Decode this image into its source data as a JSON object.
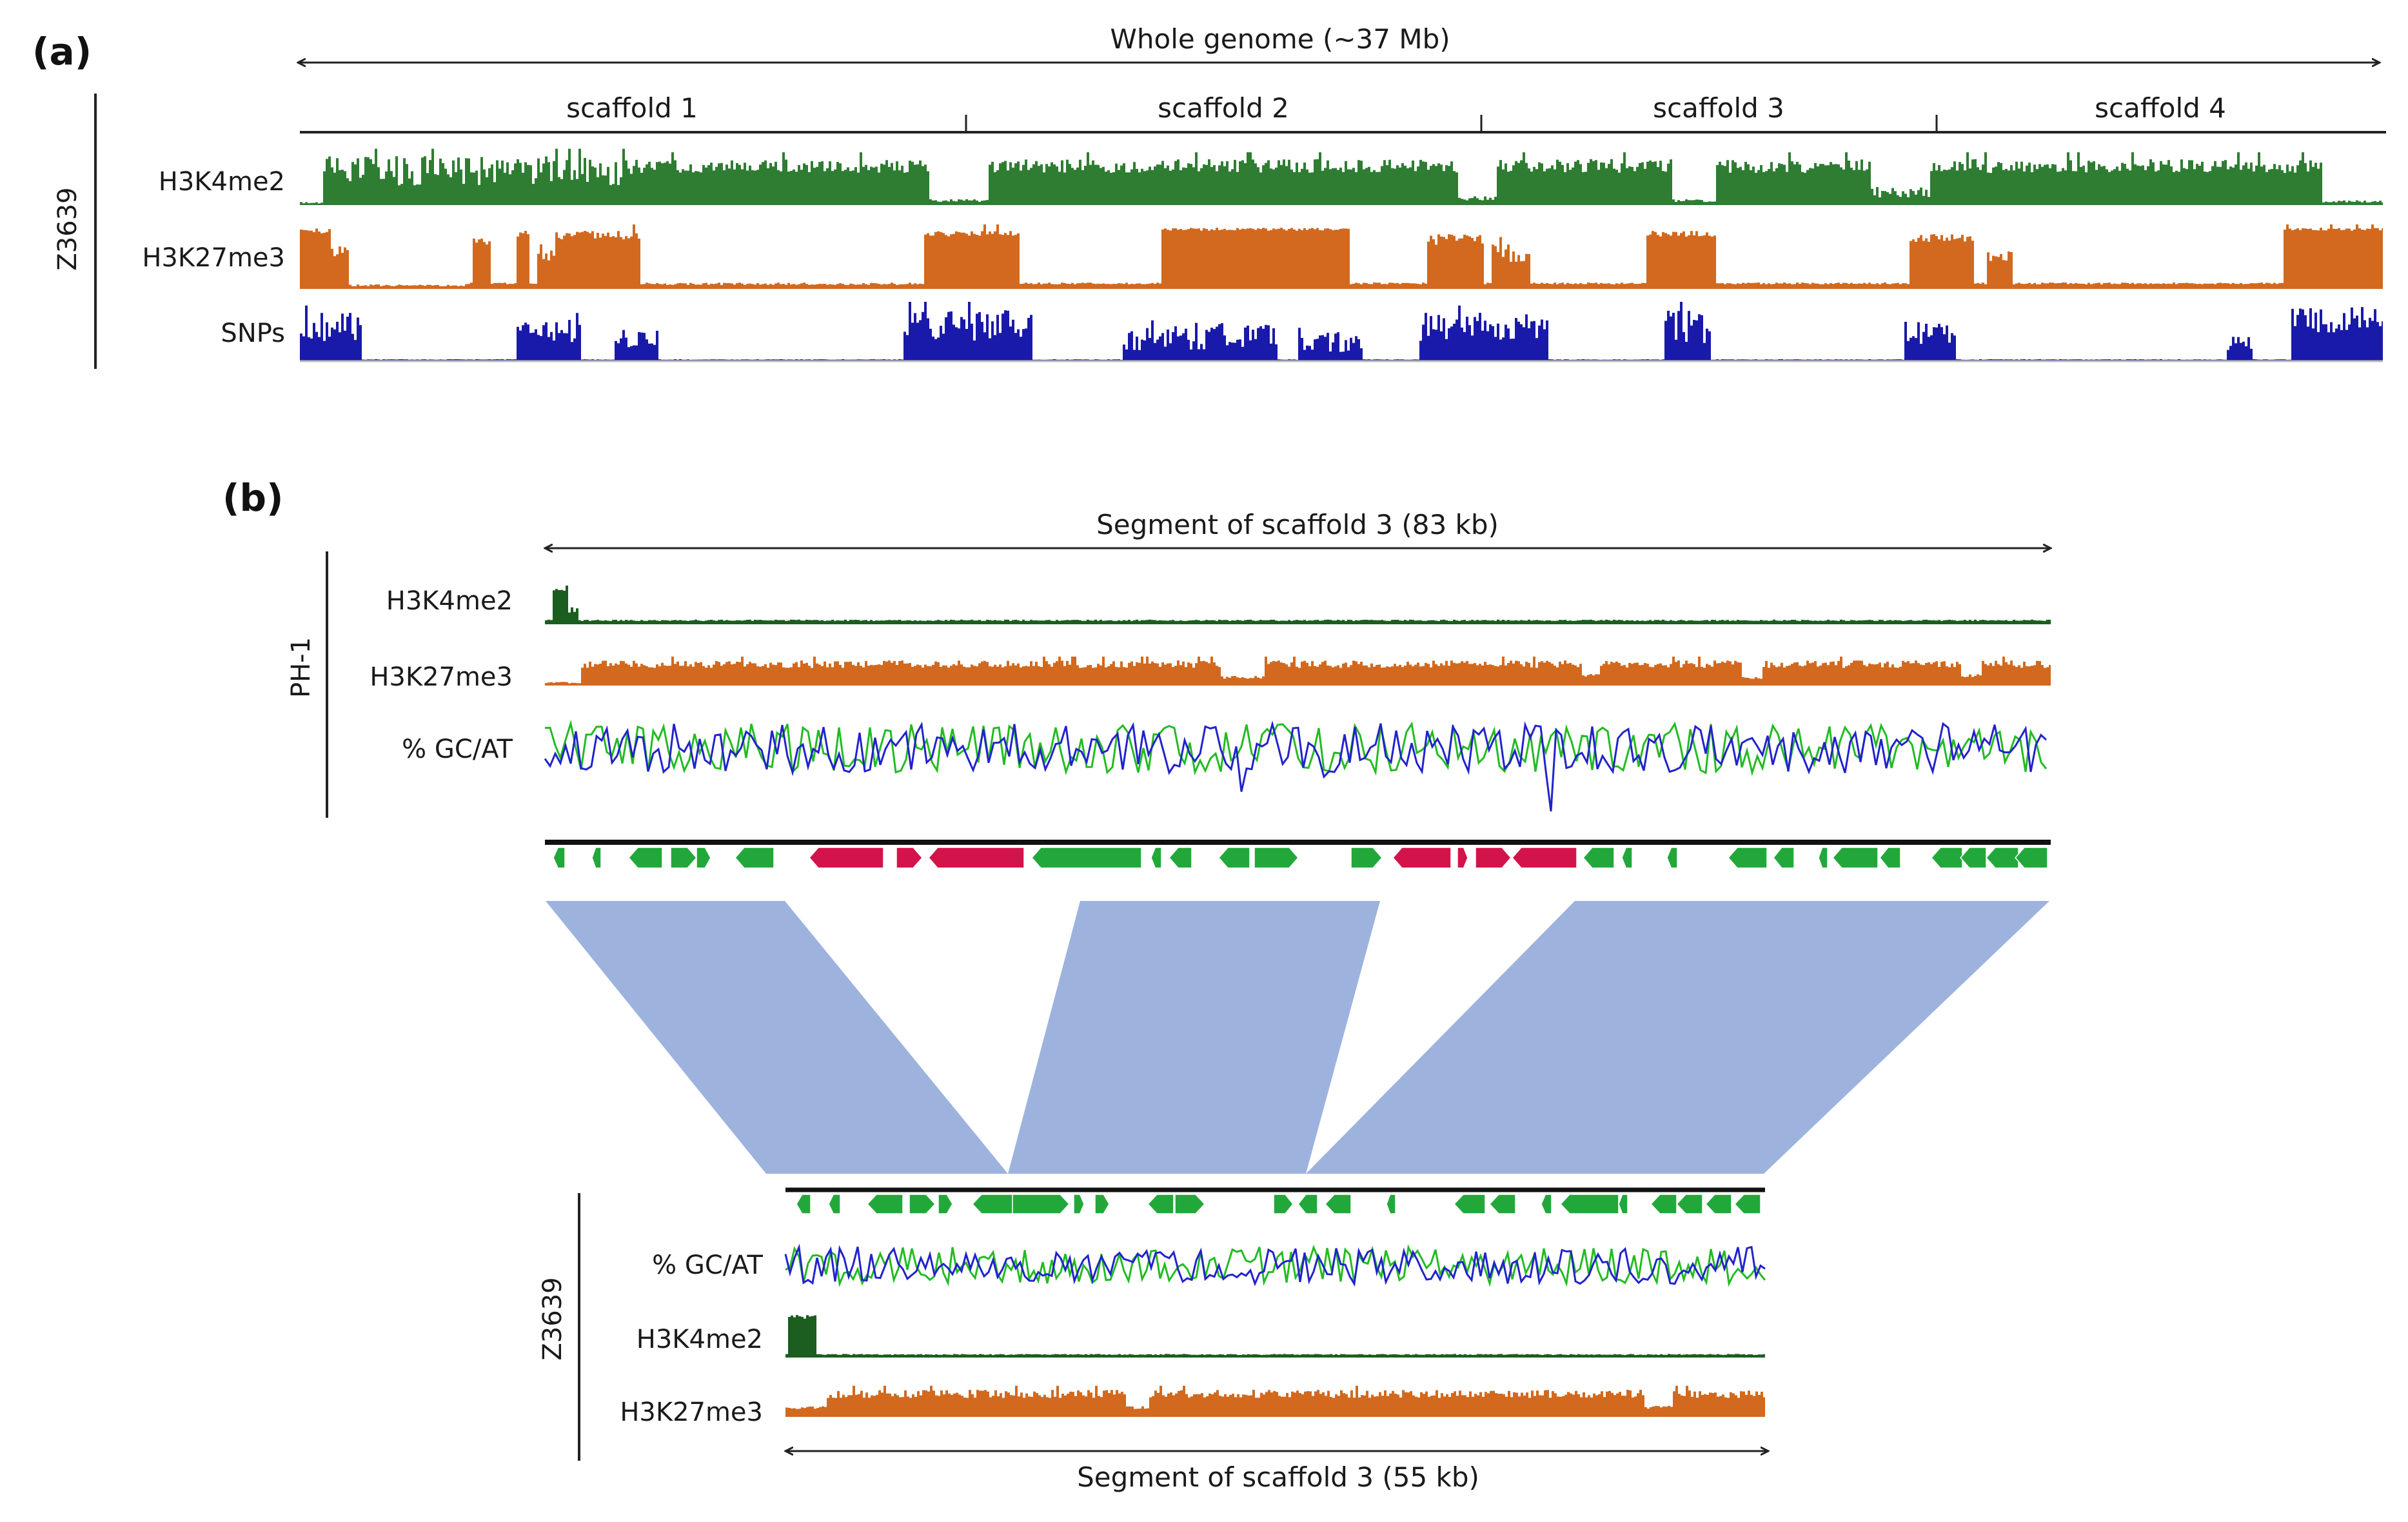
{
  "colors": {
    "h3k4me2": "#2e7d32",
    "h3k4me2_dark": "#1b5e20",
    "h3k27me3": "#d2691e",
    "snps": "#1a1aaa",
    "gc": "#22bb22",
    "at": "#2222cc",
    "gene_green": "#22a83a",
    "gene_red": "#d2144a",
    "synteny": "#9db3de",
    "axis": "#222222"
  },
  "panel_a": {
    "label": "(a)",
    "genome_label": "Whole genome (~37 Mb)",
    "strain": "Z3639",
    "scaffolds": [
      "scaffold 1",
      "scaffold 2",
      "scaffold 3",
      "scaffold 4"
    ],
    "tracks": [
      "H3K4me2",
      "H3K27me3",
      "SNPs"
    ]
  },
  "panel_b": {
    "label": "(b)",
    "top_segment_label": "Segment of scaffold 3 (83 kb)",
    "top_strain": "PH-1",
    "top_tracks": [
      "H3K4me2",
      "H3K27me3",
      "% GC/AT"
    ],
    "bottom_strain": "Z3639",
    "bottom_tracks": [
      "% GC/AT",
      "H3K4me2",
      "H3K27me3"
    ],
    "bottom_segment_label": "Segment of scaffold 3 (55 kb)"
  }
}
